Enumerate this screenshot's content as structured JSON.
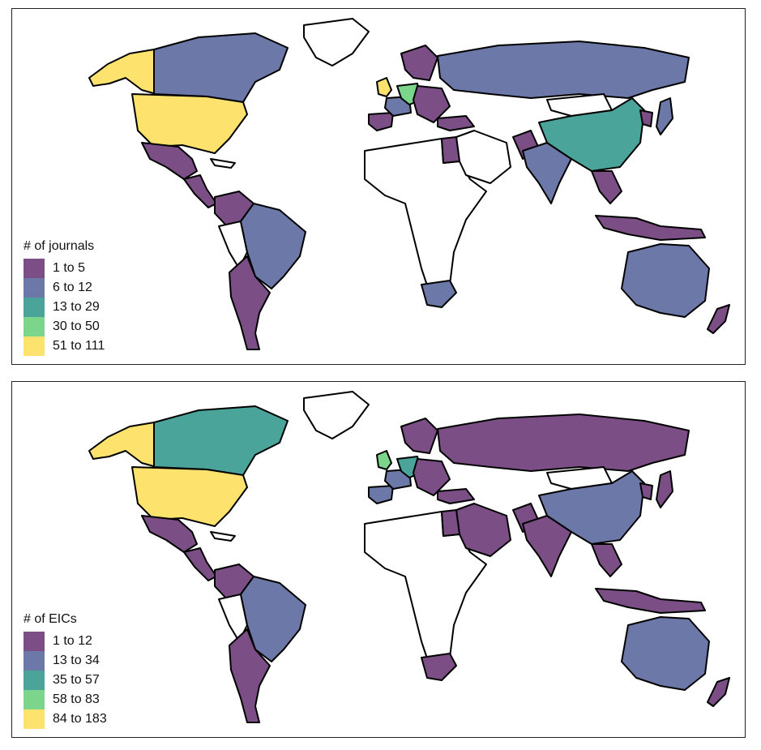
{
  "palette": {
    "purple": "#7b4f86",
    "blue": "#6b78a8",
    "teal": "#4aa49a",
    "green": "#7bd58a",
    "yellow": "#fde26e",
    "none": "#ffffff",
    "outline": "#000000"
  },
  "maps": [
    {
      "legend": {
        "title": "# of journals",
        "items": [
          {
            "label": "1 to 5",
            "color": "#7b4f86"
          },
          {
            "label": "6 to 12",
            "color": "#6b78a8"
          },
          {
            "label": "13 to 29",
            "color": "#4aa49a"
          },
          {
            "label": "30 to 50",
            "color": "#7bd58a"
          },
          {
            "label": "51 to 111",
            "color": "#fde26e"
          }
        ]
      },
      "fills": {
        "alaska": "yellow",
        "usa": "yellow",
        "canada": "blue",
        "greenland": "none",
        "mexico": "purple",
        "central_america": "purple",
        "caribbean": "none",
        "colombia": "purple",
        "brazil": "blue",
        "argentina": "purple",
        "south_america_other": "none",
        "uk": "yellow",
        "iberia": "purple",
        "france_benelux": "blue",
        "germany": "green",
        "central_europe": "purple",
        "scandinavia": "purple",
        "russia": "blue",
        "turkey": "purple",
        "egypt": "purple",
        "middle_east": "none",
        "africa": "none",
        "south_africa": "blue",
        "india": "blue",
        "pakistan": "purple",
        "china": "teal",
        "mongolia": "none",
        "japan": "blue",
        "korea": "purple",
        "se_asia": "purple",
        "indonesia": "purple",
        "australia": "blue",
        "new_zealand": "purple"
      }
    },
    {
      "legend": {
        "title": "# of EICs",
        "items": [
          {
            "label": "1 to 12",
            "color": "#7b4f86"
          },
          {
            "label": "13 to 34",
            "color": "#6b78a8"
          },
          {
            "label": "35 to 57",
            "color": "#4aa49a"
          },
          {
            "label": "58 to 83",
            "color": "#7bd58a"
          },
          {
            "label": "84 to 183",
            "color": "#fde26e"
          }
        ]
      },
      "fills": {
        "alaska": "yellow",
        "usa": "yellow",
        "canada": "teal",
        "greenland": "none",
        "mexico": "purple",
        "central_america": "purple",
        "caribbean": "none",
        "colombia": "purple",
        "brazil": "blue",
        "argentina": "purple",
        "south_america_other": "none",
        "uk": "green",
        "iberia": "blue",
        "france_benelux": "blue",
        "germany": "teal",
        "central_europe": "purple",
        "scandinavia": "purple",
        "russia": "purple",
        "turkey": "purple",
        "egypt": "purple",
        "middle_east": "purple",
        "africa": "none",
        "south_africa": "purple",
        "india": "purple",
        "pakistan": "purple",
        "china": "blue",
        "mongolia": "none",
        "japan": "purple",
        "korea": "purple",
        "se_asia": "purple",
        "indonesia": "purple",
        "australia": "blue",
        "new_zealand": "purple"
      }
    }
  ]
}
